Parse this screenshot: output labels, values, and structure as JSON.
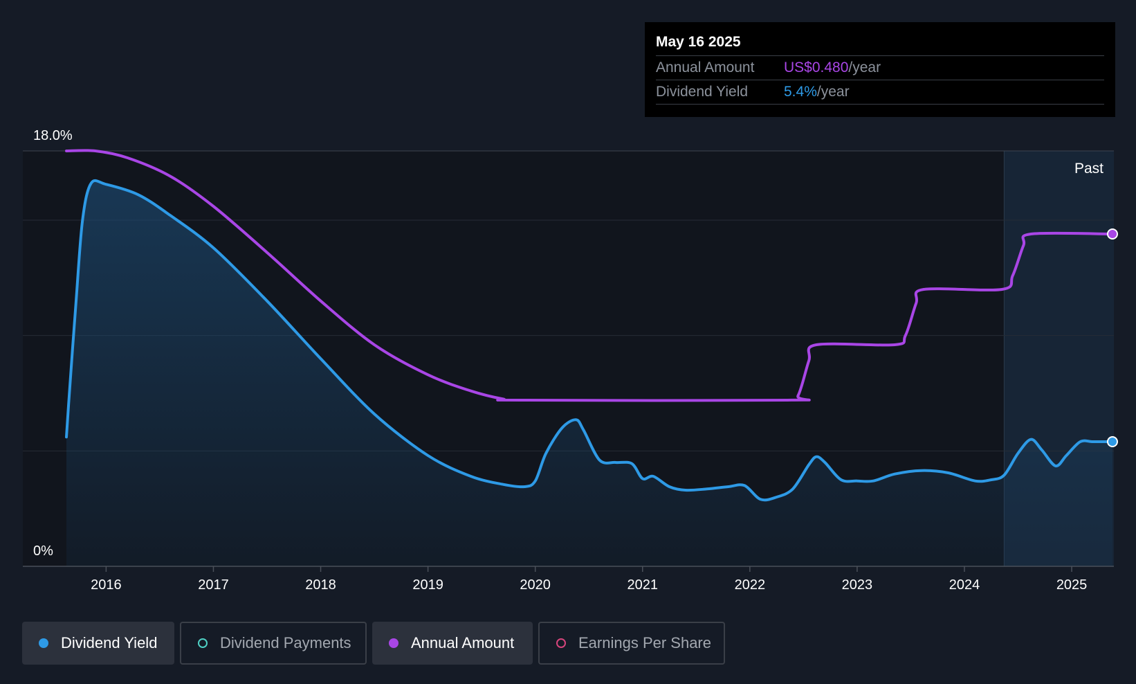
{
  "chart_data": {
    "type": "line",
    "y_axis": {
      "top_label": "18.0%",
      "bottom_label": "0%",
      "ylim": [
        0,
        18
      ]
    },
    "x_ticks": [
      "2016",
      "2017",
      "2018",
      "2019",
      "2020",
      "2021",
      "2022",
      "2023",
      "2024",
      "2025"
    ],
    "xlim": [
      2015.63,
      2025.38
    ],
    "past_label": "Past",
    "past_start": 2024.37,
    "grid": true,
    "series": [
      {
        "name": "Dividend Yield",
        "color": "#2e9ae6",
        "fill": true,
        "points": [
          [
            2015.63,
            5.6
          ],
          [
            2015.65,
            7.0
          ],
          [
            2015.72,
            11.5
          ],
          [
            2015.78,
            15.0
          ],
          [
            2015.86,
            16.6
          ],
          [
            2016.0,
            16.55
          ],
          [
            2016.3,
            16.1
          ],
          [
            2016.6,
            15.2
          ],
          [
            2017.0,
            13.8
          ],
          [
            2017.5,
            11.5
          ],
          [
            2018.0,
            9.0
          ],
          [
            2018.5,
            6.6
          ],
          [
            2019.0,
            4.8
          ],
          [
            2019.4,
            3.9
          ],
          [
            2019.7,
            3.55
          ],
          [
            2019.9,
            3.45
          ],
          [
            2020.0,
            3.7
          ],
          [
            2020.1,
            4.9
          ],
          [
            2020.25,
            6.0
          ],
          [
            2020.38,
            6.35
          ],
          [
            2020.45,
            5.9
          ],
          [
            2020.6,
            4.6
          ],
          [
            2020.75,
            4.5
          ],
          [
            2020.9,
            4.45
          ],
          [
            2021.0,
            3.8
          ],
          [
            2021.1,
            3.9
          ],
          [
            2021.25,
            3.45
          ],
          [
            2021.4,
            3.3
          ],
          [
            2021.6,
            3.35
          ],
          [
            2021.8,
            3.45
          ],
          [
            2021.95,
            3.5
          ],
          [
            2022.1,
            2.9
          ],
          [
            2022.25,
            3.0
          ],
          [
            2022.4,
            3.35
          ],
          [
            2022.55,
            4.4
          ],
          [
            2022.62,
            4.75
          ],
          [
            2022.7,
            4.5
          ],
          [
            2022.85,
            3.75
          ],
          [
            2023.0,
            3.7
          ],
          [
            2023.15,
            3.7
          ],
          [
            2023.35,
            4.0
          ],
          [
            2023.6,
            4.15
          ],
          [
            2023.85,
            4.05
          ],
          [
            2024.1,
            3.7
          ],
          [
            2024.25,
            3.75
          ],
          [
            2024.37,
            3.95
          ],
          [
            2024.5,
            4.9
          ],
          [
            2024.62,
            5.5
          ],
          [
            2024.72,
            5.05
          ],
          [
            2024.85,
            4.35
          ],
          [
            2024.95,
            4.8
          ],
          [
            2025.08,
            5.4
          ],
          [
            2025.2,
            5.4
          ],
          [
            2025.38,
            5.4
          ]
        ]
      },
      {
        "name": "Annual Amount",
        "color": "#a946e6",
        "fill": false,
        "points": [
          [
            2015.63,
            18.0
          ],
          [
            2015.9,
            18.0
          ],
          [
            2016.2,
            17.7
          ],
          [
            2016.6,
            16.9
          ],
          [
            2017.0,
            15.6
          ],
          [
            2017.5,
            13.6
          ],
          [
            2018.0,
            11.5
          ],
          [
            2018.5,
            9.6
          ],
          [
            2019.0,
            8.3
          ],
          [
            2019.4,
            7.6
          ],
          [
            2019.7,
            7.25
          ],
          [
            2019.87,
            7.2
          ],
          [
            2022.35,
            7.2
          ],
          [
            2022.45,
            7.4
          ],
          [
            2022.55,
            8.9
          ],
          [
            2022.62,
            9.6
          ],
          [
            2023.35,
            9.6
          ],
          [
            2023.45,
            10.0
          ],
          [
            2023.55,
            11.4
          ],
          [
            2023.62,
            12.0
          ],
          [
            2024.35,
            12.0
          ],
          [
            2024.45,
            12.6
          ],
          [
            2024.55,
            13.9
          ],
          [
            2024.62,
            14.4
          ],
          [
            2025.38,
            14.4
          ]
        ]
      }
    ]
  },
  "tooltip": {
    "date": "May 16 2025",
    "rows": [
      {
        "label": "Annual Amount",
        "value": "US$0.480",
        "unit": "/year",
        "color": "#a946e6"
      },
      {
        "label": "Dividend Yield",
        "value": "5.4%",
        "unit": "/year",
        "color": "#2e9ae6"
      }
    ]
  },
  "legend": [
    {
      "label": "Dividend Yield",
      "color": "#2e9ae6",
      "active": true
    },
    {
      "label": "Dividend Payments",
      "color": "#4fd1c5",
      "active": false
    },
    {
      "label": "Annual Amount",
      "color": "#a946e6",
      "active": true
    },
    {
      "label": "Earnings Per Share",
      "color": "#d6457c",
      "active": false
    }
  ]
}
